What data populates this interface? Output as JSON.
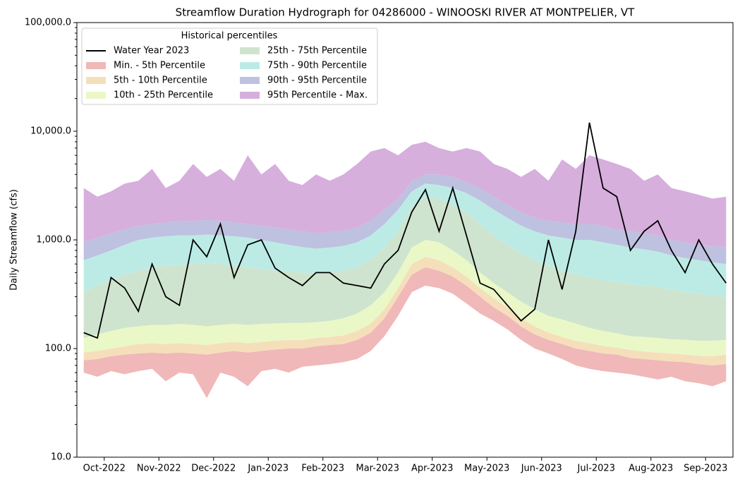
{
  "chart_data": {
    "type": "area",
    "title": "Streamflow Duration Hydrograph for 04286000 - WINOOSKI RIVER AT MONTPELIER, VT",
    "ylabel": "Daily Streamflow (cfs)",
    "log_scale": true,
    "ylim": [
      10,
      100000
    ],
    "yticks": [
      {
        "value": 10,
        "label": "10.0"
      },
      {
        "value": 100,
        "label": "100.0"
      },
      {
        "value": 1000,
        "label": "1,000.0"
      },
      {
        "value": 10000,
        "label": "10,000.0"
      },
      {
        "value": 100000,
        "label": "100,000.0"
      }
    ],
    "legend_title": "Historical percentiles",
    "legend": "upper left",
    "categories": [
      null,
      "Oct-2022",
      null,
      null,
      null,
      "Nov-2022",
      null,
      null,
      null,
      "Dec-2022",
      null,
      null,
      null,
      "Jan-2023",
      null,
      null,
      null,
      "Feb-2023",
      null,
      null,
      null,
      "Mar-2023",
      null,
      null,
      null,
      "Apr-2023",
      null,
      null,
      null,
      "May-2023",
      null,
      null,
      null,
      "Jun-2023",
      null,
      null,
      null,
      "Jul-2023",
      null,
      null,
      null,
      "Aug-2023",
      null,
      null,
      null,
      "Sep-2023",
      null,
      null
    ],
    "bands": [
      {
        "name": "Min. - 5th Percentile",
        "color": "#f0b8b8",
        "lower": [
          60,
          55,
          62,
          58,
          62,
          65,
          50,
          60,
          58,
          35,
          60,
          55,
          45,
          62,
          65,
          60,
          68,
          70,
          72,
          75,
          80,
          95,
          130,
          200,
          330,
          380,
          360,
          320,
          260,
          210,
          180,
          150,
          120,
          100,
          90,
          80,
          70,
          65,
          62,
          60,
          58,
          55,
          52,
          55,
          50,
          48,
          45,
          50
        ],
        "values": [
          78,
          80,
          85,
          88,
          90,
          92,
          90,
          92,
          90,
          88,
          92,
          95,
          92,
          95,
          98,
          100,
          100,
          105,
          108,
          110,
          120,
          140,
          190,
          300,
          480,
          560,
          520,
          460,
          380,
          300,
          240,
          200,
          160,
          135,
          120,
          110,
          100,
          95,
          90,
          88,
          82,
          80,
          78,
          76,
          75,
          72,
          70,
          72
        ]
      },
      {
        "name": "5th - 10th Percentile",
        "color": "#f5dfbb",
        "values": [
          92,
          95,
          100,
          105,
          110,
          112,
          110,
          112,
          110,
          108,
          112,
          115,
          112,
          115,
          118,
          120,
          120,
          125,
          128,
          132,
          145,
          170,
          230,
          360,
          600,
          700,
          650,
          560,
          460,
          360,
          290,
          240,
          190,
          160,
          140,
          128,
          118,
          112,
          106,
          102,
          97,
          94,
          92,
          90,
          88,
          86,
          85,
          88
        ]
      },
      {
        "name": "10th - 25th Percentile",
        "color": "#eaf8c8",
        "values": [
          125,
          135,
          145,
          155,
          160,
          165,
          165,
          168,
          165,
          160,
          165,
          168,
          165,
          168,
          170,
          172,
          172,
          175,
          180,
          190,
          210,
          250,
          330,
          500,
          850,
          1000,
          950,
          800,
          650,
          500,
          400,
          330,
          270,
          230,
          200,
          185,
          170,
          155,
          145,
          138,
          130,
          128,
          125,
          122,
          120,
          118,
          118,
          120
        ]
      },
      {
        "name": "25th - 75th Percentile",
        "color": "#cfe4cf",
        "values": [
          330,
          380,
          430,
          480,
          520,
          560,
          580,
          590,
          600,
          610,
          600,
          580,
          560,
          540,
          520,
          510,
          500,
          490,
          500,
          520,
          560,
          650,
          850,
          1200,
          2000,
          2500,
          2400,
          2100,
          1800,
          1400,
          1100,
          900,
          750,
          650,
          580,
          520,
          480,
          450,
          430,
          410,
          390,
          380,
          370,
          350,
          330,
          320,
          310,
          300
        ]
      },
      {
        "name": "75th - 90th Percentile",
        "color": "#bcebe6",
        "values": [
          650,
          720,
          800,
          900,
          1000,
          1050,
          1080,
          1100,
          1100,
          1120,
          1100,
          1080,
          1050,
          1000,
          950,
          900,
          860,
          830,
          850,
          880,
          950,
          1100,
          1400,
          1900,
          2800,
          3300,
          3200,
          3000,
          2700,
          2300,
          1900,
          1600,
          1350,
          1200,
          1100,
          1050,
          1000,
          1000,
          950,
          900,
          850,
          820,
          780,
          720,
          680,
          650,
          620,
          600
        ]
      },
      {
        "name": "90th - 95th Percentile",
        "color": "#bec1df",
        "values": [
          950,
          1050,
          1150,
          1250,
          1350,
          1400,
          1450,
          1480,
          1500,
          1520,
          1500,
          1450,
          1400,
          1350,
          1300,
          1250,
          1200,
          1150,
          1180,
          1220,
          1300,
          1500,
          1900,
          2400,
          3500,
          4000,
          4000,
          3800,
          3400,
          3000,
          2500,
          2100,
          1800,
          1600,
          1500,
          1450,
          1400,
          1400,
          1350,
          1250,
          1200,
          1150,
          1100,
          1000,
          950,
          900,
          880,
          860
        ]
      },
      {
        "name": "95th Percentile - Max.",
        "color": "#d6afdd",
        "values": [
          3000,
          2500,
          2800,
          3300,
          3500,
          4500,
          3000,
          3500,
          5000,
          3800,
          4500,
          3500,
          6000,
          4000,
          5000,
          3500,
          3200,
          4000,
          3500,
          4000,
          5000,
          6500,
          7000,
          6000,
          7500,
          8000,
          7000,
          6500,
          7000,
          6500,
          5000,
          4500,
          3800,
          4500,
          3500,
          5500,
          4500,
          6000,
          5500,
          5000,
          4500,
          3500,
          4000,
          3000,
          2800,
          2600,
          2400,
          2500
        ]
      }
    ],
    "series": [
      {
        "name": "Water Year 2023",
        "color": "#000000",
        "values": [
          140,
          125,
          450,
          360,
          220,
          600,
          300,
          250,
          1000,
          700,
          1400,
          450,
          900,
          1000,
          550,
          450,
          380,
          500,
          500,
          400,
          380,
          360,
          600,
          800,
          1800,
          2900,
          1200,
          3000,
          1100,
          400,
          350,
          250,
          180,
          230,
          1000,
          350,
          1200,
          12000,
          3000,
          2500,
          800,
          1200,
          1500,
          800,
          500,
          1000,
          600,
          400
        ]
      }
    ]
  }
}
